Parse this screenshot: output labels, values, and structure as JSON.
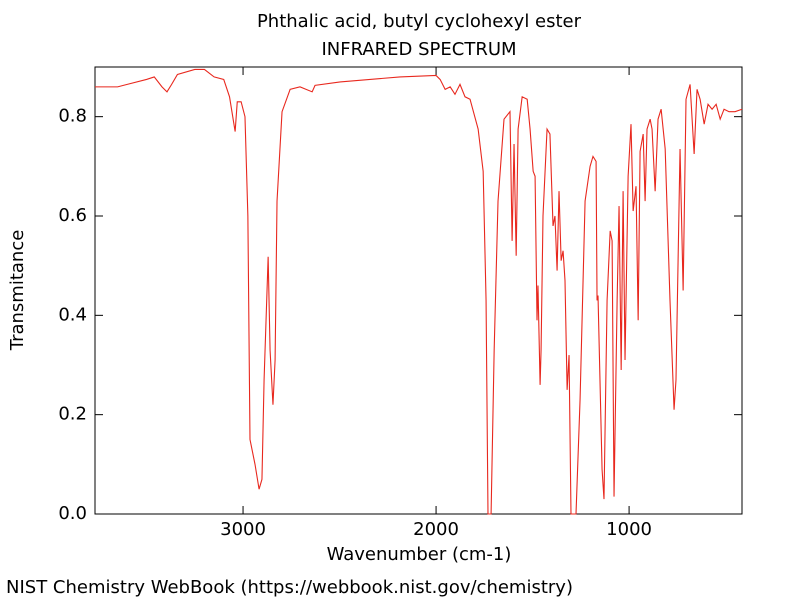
{
  "chart_data": {
    "type": "line",
    "title": "Phthalic acid, butyl cyclohexyl ester",
    "subtitle": "INFRARED SPECTRUM",
    "xlabel": "Wavenumber (cm-1)",
    "ylabel": "Transmitance",
    "xlim": [
      3767,
      415
    ],
    "ylim": [
      0,
      0.9
    ],
    "xticks": [
      3000,
      2000,
      1000
    ],
    "yticks": [
      {
        "value": 0,
        "label": "0.0"
      },
      0.2,
      0.4,
      0.6,
      0.8
    ],
    "series": [
      {
        "color": "#e8281e",
        "x": [
          3767,
          3650,
          3600,
          3500,
          3460,
          3420,
          3394,
          3370,
          3340,
          3250,
          3200,
          3150,
          3100,
          3070,
          3041,
          3030,
          3010,
          2990,
          2975,
          2964,
          2938,
          2917,
          2902,
          2891,
          2870,
          2860,
          2845,
          2834,
          2824,
          2798,
          2756,
          2705,
          2642,
          2627,
          2497,
          2187,
          2000,
          1979,
          1953,
          1927,
          1902,
          1876,
          1850,
          1824,
          1782,
          1756,
          1741,
          1731,
          1715,
          1699,
          1679,
          1648,
          1617,
          1606,
          1596,
          1585,
          1575,
          1554,
          1528,
          1513,
          1497,
          1487,
          1477,
          1472,
          1461,
          1456,
          1446,
          1425,
          1410,
          1394,
          1384,
          1373,
          1363,
          1352,
          1342,
          1332,
          1321,
          1311,
          1301,
          1275,
          1254,
          1228,
          1202,
          1187,
          1171,
          1166,
          1161,
          1140,
          1130,
          1114,
          1098,
          1088,
          1078,
          1062,
          1052,
          1041,
          1031,
          1021,
          1005,
          990,
          979,
          964,
          953,
          943,
          927,
          917,
          907,
          891,
          881,
          865,
          850,
          834,
          813,
          788,
          767,
          757,
          736,
          720,
          705,
          684,
          663,
          648,
          632,
          611,
          591,
          570,
          549,
          528,
          508,
          482,
          451,
          415
        ],
        "values": [
          0.86,
          0.86,
          0.865,
          0.875,
          0.88,
          0.86,
          0.85,
          0.865,
          0.885,
          0.895,
          0.895,
          0.88,
          0.875,
          0.84,
          0.77,
          0.83,
          0.83,
          0.8,
          0.6,
          0.15,
          0.1,
          0.05,
          0.07,
          0.27,
          0.518,
          0.33,
          0.22,
          0.31,
          0.63,
          0.81,
          0.855,
          0.86,
          0.85,
          0.863,
          0.87,
          0.88,
          0.883,
          0.875,
          0.855,
          0.86,
          0.845,
          0.865,
          0.84,
          0.835,
          0.775,
          0.69,
          0.43,
          0.0,
          0.0,
          0.33,
          0.63,
          0.795,
          0.81,
          0.55,
          0.745,
          0.52,
          0.775,
          0.84,
          0.835,
          0.775,
          0.69,
          0.68,
          0.39,
          0.46,
          0.26,
          0.33,
          0.6,
          0.775,
          0.765,
          0.58,
          0.6,
          0.49,
          0.65,
          0.51,
          0.53,
          0.47,
          0.25,
          0.32,
          0.0,
          0.0,
          0.23,
          0.63,
          0.7,
          0.72,
          0.71,
          0.43,
          0.44,
          0.09,
          0.03,
          0.43,
          0.57,
          0.55,
          0.035,
          0.43,
          0.62,
          0.29,
          0.65,
          0.31,
          0.68,
          0.785,
          0.61,
          0.66,
          0.39,
          0.73,
          0.765,
          0.63,
          0.775,
          0.795,
          0.775,
          0.65,
          0.795,
          0.815,
          0.735,
          0.43,
          0.21,
          0.27,
          0.735,
          0.45,
          0.835,
          0.865,
          0.725,
          0.855,
          0.835,
          0.785,
          0.825,
          0.815,
          0.825,
          0.795,
          0.815,
          0.81,
          0.81,
          0.815
        ]
      }
    ]
  },
  "footer": "NIST Chemistry WebBook (https://webbook.nist.gov/chemistry)"
}
